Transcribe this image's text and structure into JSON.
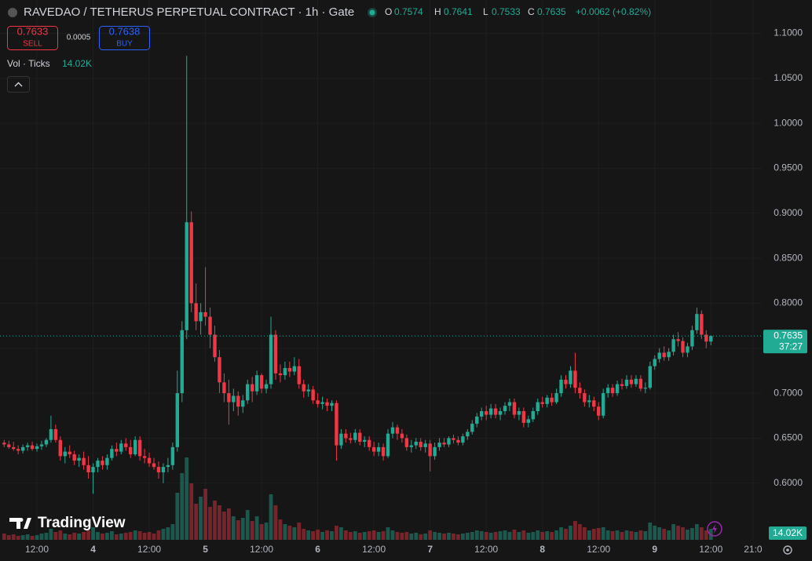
{
  "header": {
    "title": "RAVEDAO / TETHERUS PERPETUAL CONTRACT · 1h · Gate",
    "o": "O",
    "h": "H",
    "l": "L",
    "c": "C",
    "change": "+0.0062 (+0.82%)",
    "sell_price": "0.7633",
    "sell": "SELL",
    "spread": "0.0005",
    "buy_price": "0.7638",
    "buy": "BUY",
    "volume_label": "Vol · Ticks",
    "volume_value": "14.02K",
    "countdown": "37:27",
    "logo": "TradingView"
  },
  "chart_data": {
    "type": "candlestick",
    "up_color": "#22ab94",
    "down_color": "#f23645",
    "grid": true,
    "ylim": [
      0.537,
      1.137
    ],
    "yticks": [
      {
        "value": 0.6,
        "label": "0.6000"
      },
      {
        "value": 0.65,
        "label": "0.6500"
      },
      {
        "value": 0.7,
        "label": "0.7000"
      },
      {
        "value": 0.75,
        "label": "0.7500"
      },
      {
        "value": 0.8,
        "label": "0.8000"
      },
      {
        "value": 0.85,
        "label": "0.8500"
      },
      {
        "value": 0.9,
        "label": "0.9000"
      },
      {
        "value": 0.95,
        "label": "0.9500"
      },
      {
        "value": 1.0,
        "label": "1.0000"
      },
      {
        "value": 1.05,
        "label": "1.0500"
      },
      {
        "value": 1.1,
        "label": "1.1000"
      }
    ],
    "xticks": [
      {
        "value": 7,
        "label": "12:00"
      },
      {
        "value": 19,
        "label": "4"
      },
      {
        "value": 31,
        "label": "12:00"
      },
      {
        "value": 43,
        "label": "5"
      },
      {
        "value": 55,
        "label": "12:00"
      },
      {
        "value": 67,
        "label": "6"
      },
      {
        "value": 79,
        "label": "12:00"
      },
      {
        "value": 91,
        "label": "7"
      },
      {
        "value": 103,
        "label": "12:00"
      },
      {
        "value": 115,
        "label": "8"
      },
      {
        "value": 127,
        "label": "12:00"
      },
      {
        "value": 139,
        "label": "9"
      },
      {
        "value": 151,
        "label": "12:00"
      },
      {
        "value": 160,
        "label": "21:0"
      }
    ],
    "candles": [
      [
        0.645,
        0.648,
        0.64,
        0.643
      ],
      [
        0.643,
        0.647,
        0.638,
        0.64
      ],
      [
        0.64,
        0.646,
        0.636,
        0.638
      ],
      [
        0.638,
        0.642,
        0.632,
        0.636
      ],
      [
        0.636,
        0.643,
        0.633,
        0.64
      ],
      [
        0.64,
        0.645,
        0.636,
        0.642
      ],
      [
        0.642,
        0.646,
        0.636,
        0.638
      ],
      [
        0.638,
        0.644,
        0.635,
        0.641
      ],
      [
        0.641,
        0.647,
        0.637,
        0.643
      ],
      [
        0.643,
        0.65,
        0.64,
        0.648
      ],
      [
        0.648,
        0.675,
        0.645,
        0.66
      ],
      [
        0.66,
        0.665,
        0.645,
        0.648
      ],
      [
        0.648,
        0.652,
        0.625,
        0.63
      ],
      [
        0.63,
        0.64,
        0.622,
        0.635
      ],
      [
        0.635,
        0.642,
        0.628,
        0.632
      ],
      [
        0.632,
        0.636,
        0.62,
        0.625
      ],
      [
        0.625,
        0.632,
        0.618,
        0.628
      ],
      [
        0.628,
        0.635,
        0.615,
        0.62
      ],
      [
        0.62,
        0.63,
        0.605,
        0.612
      ],
      [
        0.612,
        0.622,
        0.588,
        0.618
      ],
      [
        0.618,
        0.628,
        0.612,
        0.625
      ],
      [
        0.625,
        0.63,
        0.615,
        0.62
      ],
      [
        0.62,
        0.632,
        0.615,
        0.628
      ],
      [
        0.628,
        0.642,
        0.625,
        0.638
      ],
      [
        0.638,
        0.645,
        0.63,
        0.635
      ],
      [
        0.635,
        0.648,
        0.632,
        0.644
      ],
      [
        0.644,
        0.65,
        0.636,
        0.64
      ],
      [
        0.64,
        0.648,
        0.628,
        0.632
      ],
      [
        0.632,
        0.652,
        0.63,
        0.648
      ],
      [
        0.648,
        0.652,
        0.625,
        0.63
      ],
      [
        0.63,
        0.638,
        0.622,
        0.628
      ],
      [
        0.628,
        0.634,
        0.618,
        0.622
      ],
      [
        0.622,
        0.628,
        0.615,
        0.618
      ],
      [
        0.618,
        0.624,
        0.605,
        0.612
      ],
      [
        0.612,
        0.622,
        0.6,
        0.618
      ],
      [
        0.618,
        0.628,
        0.612,
        0.62
      ],
      [
        0.62,
        0.645,
        0.615,
        0.64
      ],
      [
        0.64,
        0.725,
        0.635,
        0.7
      ],
      [
        0.7,
        0.78,
        0.69,
        0.77
      ],
      [
        0.77,
        1.075,
        0.76,
        0.89
      ],
      [
        0.89,
        0.902,
        0.79,
        0.8
      ],
      [
        0.8,
        0.822,
        0.77,
        0.78
      ],
      [
        0.78,
        0.8,
        0.765,
        0.79
      ],
      [
        0.79,
        0.84,
        0.775,
        0.785
      ],
      [
        0.785,
        0.795,
        0.75,
        0.765
      ],
      [
        0.765,
        0.775,
        0.735,
        0.74
      ],
      [
        0.74,
        0.748,
        0.7,
        0.712
      ],
      [
        0.712,
        0.722,
        0.69,
        0.7
      ],
      [
        0.7,
        0.715,
        0.665,
        0.69
      ],
      [
        0.69,
        0.705,
        0.68,
        0.697
      ],
      [
        0.697,
        0.702,
        0.675,
        0.685
      ],
      [
        0.685,
        0.698,
        0.678,
        0.692
      ],
      [
        0.692,
        0.715,
        0.688,
        0.71
      ],
      [
        0.71,
        0.718,
        0.69,
        0.702
      ],
      [
        0.702,
        0.725,
        0.698,
        0.72
      ],
      [
        0.72,
        0.722,
        0.7,
        0.705
      ],
      [
        0.705,
        0.715,
        0.7,
        0.71
      ],
      [
        0.71,
        0.785,
        0.705,
        0.765
      ],
      [
        0.765,
        0.77,
        0.715,
        0.722
      ],
      [
        0.722,
        0.732,
        0.712,
        0.72
      ],
      [
        0.72,
        0.735,
        0.715,
        0.728
      ],
      [
        0.728,
        0.735,
        0.718,
        0.724
      ],
      [
        0.724,
        0.74,
        0.72,
        0.73
      ],
      [
        0.73,
        0.738,
        0.705,
        0.71
      ],
      [
        0.71,
        0.715,
        0.695,
        0.702
      ],
      [
        0.702,
        0.71,
        0.696,
        0.704
      ],
      [
        0.704,
        0.708,
        0.688,
        0.692
      ],
      [
        0.692,
        0.7,
        0.684,
        0.688
      ],
      [
        0.688,
        0.696,
        0.682,
        0.69
      ],
      [
        0.69,
        0.694,
        0.68,
        0.686
      ],
      [
        0.686,
        0.692,
        0.68,
        0.689
      ],
      [
        0.689,
        0.692,
        0.625,
        0.642
      ],
      [
        0.642,
        0.66,
        0.638,
        0.655
      ],
      [
        0.655,
        0.66,
        0.645,
        0.65
      ],
      [
        0.65,
        0.656,
        0.644,
        0.648
      ],
      [
        0.648,
        0.66,
        0.645,
        0.656
      ],
      [
        0.656,
        0.66,
        0.642,
        0.646
      ],
      [
        0.646,
        0.652,
        0.64,
        0.648
      ],
      [
        0.648,
        0.652,
        0.636,
        0.64
      ],
      [
        0.64,
        0.646,
        0.63,
        0.635
      ],
      [
        0.635,
        0.645,
        0.63,
        0.64
      ],
      [
        0.64,
        0.644,
        0.625,
        0.63
      ],
      [
        0.63,
        0.66,
        0.628,
        0.655
      ],
      [
        0.655,
        0.668,
        0.65,
        0.662
      ],
      [
        0.662,
        0.665,
        0.648,
        0.655
      ],
      [
        0.655,
        0.66,
        0.645,
        0.65
      ],
      [
        0.65,
        0.654,
        0.636,
        0.64
      ],
      [
        0.64,
        0.648,
        0.634,
        0.642
      ],
      [
        0.642,
        0.65,
        0.638,
        0.646
      ],
      [
        0.646,
        0.65,
        0.636,
        0.64
      ],
      [
        0.64,
        0.648,
        0.634,
        0.644
      ],
      [
        0.644,
        0.648,
        0.613,
        0.63
      ],
      [
        0.63,
        0.645,
        0.626,
        0.64
      ],
      [
        0.64,
        0.65,
        0.636,
        0.645
      ],
      [
        0.645,
        0.65,
        0.64,
        0.643
      ],
      [
        0.643,
        0.652,
        0.64,
        0.65
      ],
      [
        0.65,
        0.654,
        0.644,
        0.648
      ],
      [
        0.648,
        0.652,
        0.642,
        0.645
      ],
      [
        0.645,
        0.655,
        0.642,
        0.652
      ],
      [
        0.652,
        0.66,
        0.648,
        0.657
      ],
      [
        0.657,
        0.67,
        0.654,
        0.666
      ],
      [
        0.666,
        0.678,
        0.662,
        0.674
      ],
      [
        0.674,
        0.684,
        0.67,
        0.68
      ],
      [
        0.68,
        0.686,
        0.67,
        0.676
      ],
      [
        0.676,
        0.688,
        0.672,
        0.683
      ],
      [
        0.683,
        0.688,
        0.672,
        0.676
      ],
      [
        0.676,
        0.684,
        0.67,
        0.68
      ],
      [
        0.68,
        0.69,
        0.676,
        0.686
      ],
      [
        0.686,
        0.694,
        0.68,
        0.69
      ],
      [
        0.69,
        0.694,
        0.672,
        0.676
      ],
      [
        0.676,
        0.684,
        0.67,
        0.68
      ],
      [
        0.68,
        0.684,
        0.662,
        0.667
      ],
      [
        0.667,
        0.675,
        0.662,
        0.671
      ],
      [
        0.671,
        0.684,
        0.668,
        0.68
      ],
      [
        0.68,
        0.694,
        0.676,
        0.69
      ],
      [
        0.69,
        0.696,
        0.684,
        0.688
      ],
      [
        0.688,
        0.698,
        0.684,
        0.695
      ],
      [
        0.695,
        0.7,
        0.686,
        0.69
      ],
      [
        0.69,
        0.705,
        0.688,
        0.7
      ],
      [
        0.7,
        0.72,
        0.696,
        0.715
      ],
      [
        0.715,
        0.72,
        0.705,
        0.71
      ],
      [
        0.71,
        0.73,
        0.706,
        0.725
      ],
      [
        0.725,
        0.745,
        0.7,
        0.706
      ],
      [
        0.706,
        0.712,
        0.694,
        0.7
      ],
      [
        0.7,
        0.704,
        0.685,
        0.69
      ],
      [
        0.69,
        0.698,
        0.684,
        0.692
      ],
      [
        0.692,
        0.696,
        0.68,
        0.685
      ],
      [
        0.685,
        0.69,
        0.67,
        0.675
      ],
      [
        0.675,
        0.705,
        0.672,
        0.7
      ],
      [
        0.7,
        0.71,
        0.695,
        0.706
      ],
      [
        0.706,
        0.71,
        0.696,
        0.7
      ],
      [
        0.7,
        0.714,
        0.697,
        0.71
      ],
      [
        0.71,
        0.716,
        0.704,
        0.708
      ],
      [
        0.708,
        0.72,
        0.705,
        0.715
      ],
      [
        0.715,
        0.72,
        0.706,
        0.71
      ],
      [
        0.71,
        0.72,
        0.707,
        0.716
      ],
      [
        0.716,
        0.72,
        0.702,
        0.705
      ],
      [
        0.705,
        0.712,
        0.7,
        0.706
      ],
      [
        0.706,
        0.735,
        0.704,
        0.73
      ],
      [
        0.73,
        0.742,
        0.726,
        0.738
      ],
      [
        0.738,
        0.75,
        0.734,
        0.745
      ],
      [
        0.745,
        0.752,
        0.736,
        0.74
      ],
      [
        0.74,
        0.75,
        0.736,
        0.746
      ],
      [
        0.746,
        0.765,
        0.742,
        0.76
      ],
      [
        0.76,
        0.768,
        0.752,
        0.758
      ],
      [
        0.758,
        0.762,
        0.74,
        0.745
      ],
      [
        0.745,
        0.756,
        0.74,
        0.752
      ],
      [
        0.752,
        0.775,
        0.748,
        0.77
      ],
      [
        0.77,
        0.795,
        0.766,
        0.788
      ],
      [
        0.788,
        0.792,
        0.76,
        0.765
      ],
      [
        0.765,
        0.77,
        0.75,
        0.7574
      ],
      [
        0.7574,
        0.7641,
        0.7533,
        0.7635
      ]
    ],
    "volume": [
      8,
      6,
      7,
      5,
      6,
      7,
      5,
      6,
      8,
      9,
      14,
      10,
      12,
      8,
      7,
      9,
      8,
      10,
      12,
      16,
      10,
      8,
      9,
      11,
      7,
      8,
      9,
      10,
      12,
      11,
      9,
      10,
      8,
      12,
      14,
      16,
      20,
      60,
      85,
      105,
      72,
      46,
      55,
      65,
      42,
      50,
      44,
      36,
      40,
      30,
      25,
      28,
      38,
      24,
      30,
      20,
      22,
      58,
      44,
      26,
      20,
      18,
      16,
      22,
      14,
      12,
      11,
      13,
      10,
      12,
      11,
      18,
      16,
      12,
      10,
      11,
      9,
      10,
      11,
      12,
      10,
      11,
      16,
      12,
      10,
      9,
      10,
      8,
      9,
      7,
      8,
      12,
      10,
      9,
      8,
      9,
      8,
      7,
      8,
      9,
      10,
      12,
      11,
      10,
      9,
      10,
      11,
      12,
      10,
      13,
      10,
      12,
      9,
      10,
      12,
      10,
      11,
      10,
      12,
      16,
      14,
      18,
      24,
      20,
      16,
      12,
      14,
      15,
      16,
      12,
      11,
      12,
      10,
      12,
      11,
      10,
      12,
      11,
      22,
      18,
      16,
      14,
      12,
      20,
      18,
      16,
      13,
      15,
      20,
      16,
      12,
      14.02
    ]
  }
}
